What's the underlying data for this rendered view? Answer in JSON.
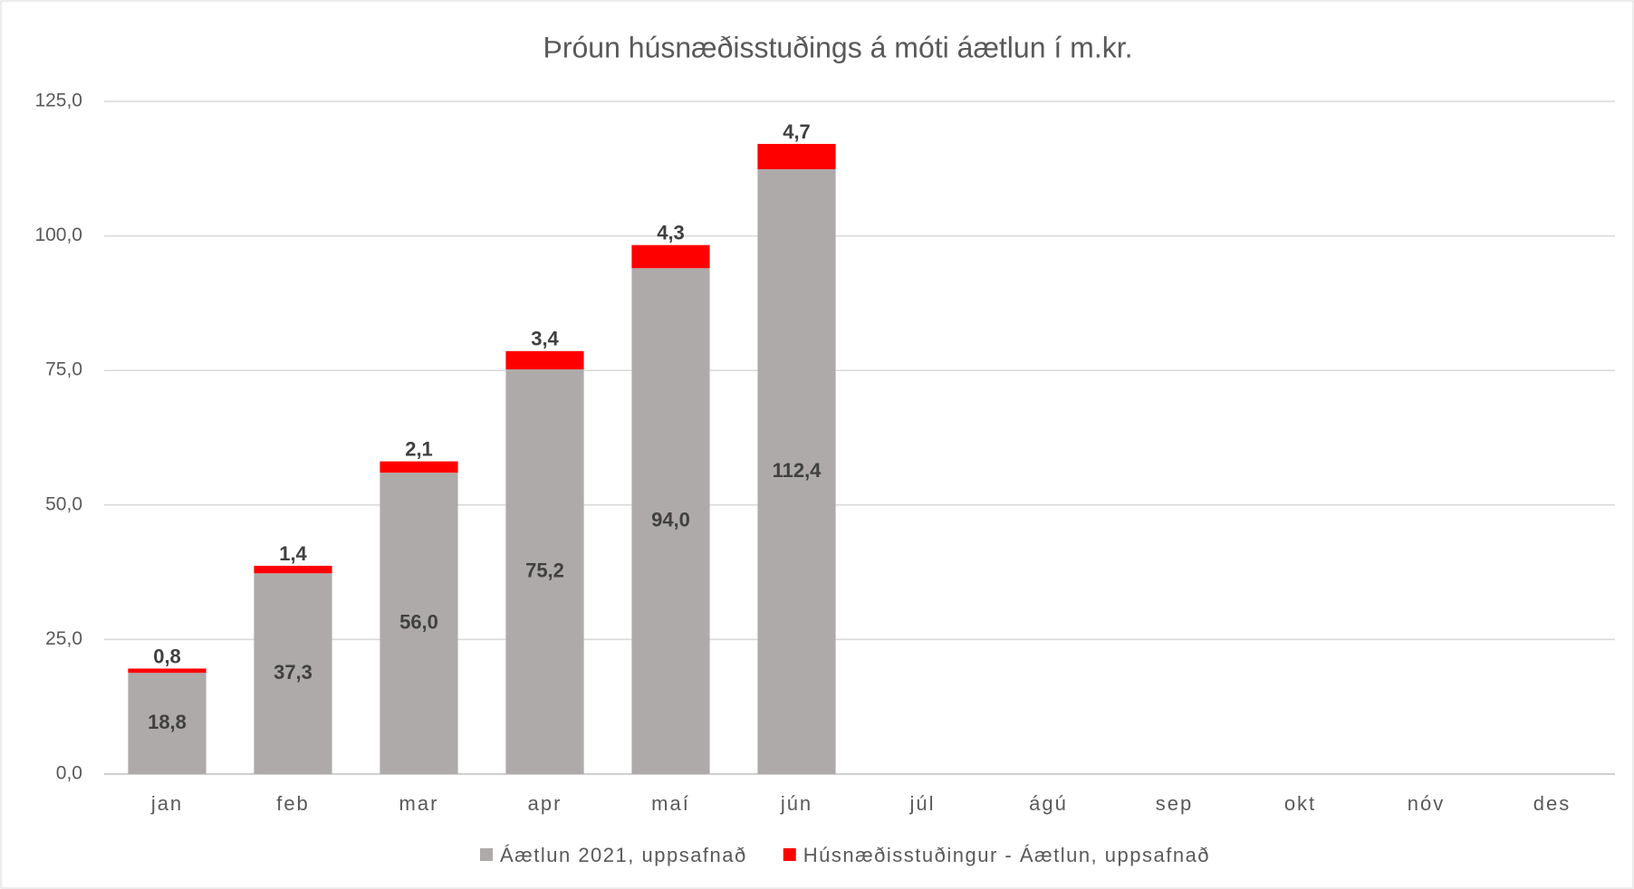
{
  "chart_data": {
    "type": "stacked_bar",
    "title": "Þróun húsnæðisstuðings á móti áætlun í m.kr.",
    "categories": [
      "jan",
      "feb",
      "mar",
      "apr",
      "maí",
      "jún",
      "júl",
      "ágú",
      "sep",
      "okt",
      "nóv",
      "des"
    ],
    "series": [
      {
        "name": "Áætlun 2021, uppsafnað",
        "color": "#aeaaaa",
        "values": [
          18.8,
          37.3,
          56.0,
          75.2,
          94.0,
          112.4,
          null,
          null,
          null,
          null,
          null,
          null
        ],
        "value_labels": [
          "18,8",
          "37,3",
          "56,0",
          "75,2",
          "94,0",
          "112,4",
          null,
          null,
          null,
          null,
          null,
          null
        ]
      },
      {
        "name": "Húsnæðisstuðingur - Áætlun, uppsafnað",
        "color": "#ff0000",
        "values": [
          0.8,
          1.4,
          2.1,
          3.4,
          4.3,
          4.7,
          null,
          null,
          null,
          null,
          null,
          null
        ],
        "value_labels": [
          "0,8",
          "1,4",
          "2,1",
          "3,4",
          "4,3",
          "4,7",
          null,
          null,
          null,
          null,
          null,
          null
        ]
      }
    ],
    "ylim": [
      0,
      125
    ],
    "yticks": [
      {
        "value": 0,
        "label": "0,0"
      },
      {
        "value": 25,
        "label": "25,0"
      },
      {
        "value": 50,
        "label": "50,0"
      },
      {
        "value": 75,
        "label": "75,0"
      },
      {
        "value": 100,
        "label": "100,0"
      },
      {
        "value": 125,
        "label": "125,0"
      }
    ],
    "grid": true,
    "legend": "bottom"
  }
}
